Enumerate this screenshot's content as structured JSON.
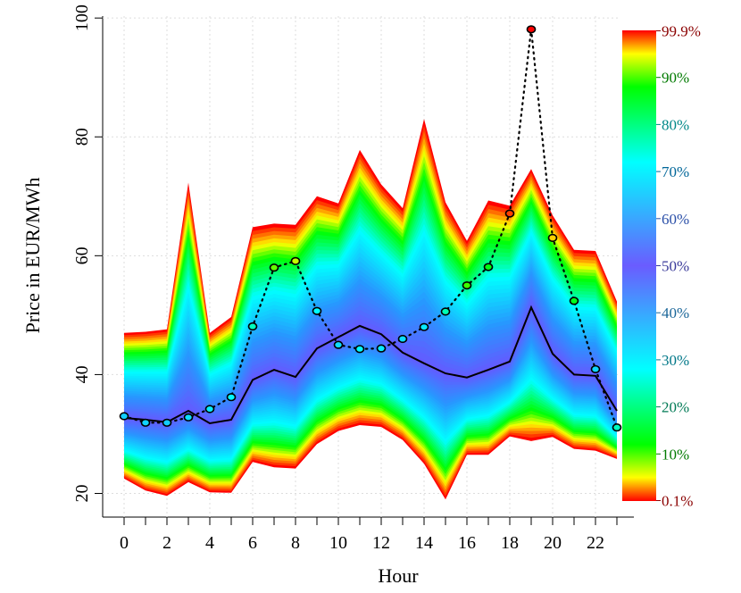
{
  "chart_data": {
    "type": "area",
    "xlabel": "Hour",
    "ylabel": "Price in EUR/MWh",
    "xlim": [
      -0.5,
      24
    ],
    "ylim": [
      18,
      100
    ],
    "x_ticks": [
      0,
      2,
      4,
      6,
      8,
      10,
      12,
      14,
      16,
      18,
      20,
      22
    ],
    "y_ticks": [
      20,
      40,
      60,
      80,
      100
    ],
    "grid": true,
    "hours": [
      0,
      1,
      2,
      3,
      4,
      5,
      6,
      7,
      8,
      9,
      10,
      11,
      12,
      13,
      14,
      15,
      16,
      17,
      18,
      19,
      20,
      21,
      22,
      23
    ],
    "quantile_band": {
      "upper_99_9": [
        47.0,
        47.2,
        47.6,
        72.3,
        47.0,
        49.7,
        64.8,
        65.4,
        65.2,
        70.0,
        68.8,
        77.8,
        72.0,
        68.0,
        83.0,
        69.0,
        62.5,
        69.3,
        68.4,
        74.6,
        66.8,
        61.0,
        60.8,
        52.3
      ],
      "lower_0_1": [
        22.5,
        20.5,
        19.6,
        21.9,
        20.2,
        20.1,
        25.3,
        24.4,
        24.2,
        28.3,
        30.5,
        31.5,
        31.2,
        29.0,
        25.0,
        19.0,
        26.5,
        26.5,
        29.6,
        28.8,
        29.5,
        27.5,
        27.2,
        25.8
      ]
    },
    "series": [
      {
        "type": "line",
        "style": "solid",
        "color": "#000000",
        "values": [
          32.7,
          32.4,
          32.0,
          33.9,
          31.8,
          32.4,
          39.1,
          40.8,
          39.6,
          44.4,
          46.3,
          48.2,
          46.8,
          43.7,
          41.9,
          40.2,
          39.5,
          40.8,
          42.2,
          51.3,
          43.5,
          40.0,
          39.8,
          33.9
        ]
      },
      {
        "type": "line",
        "style": "dotted",
        "color": "#000000",
        "points": true,
        "values": [
          33.0,
          31.9,
          31.9,
          32.8,
          34.2,
          36.2,
          48.1,
          58.0,
          59.1,
          50.7,
          45.0,
          44.3,
          44.4,
          46.0,
          48.0,
          50.6,
          55.0,
          58.1,
          67.1,
          98.1,
          63.0,
          52.4,
          40.9,
          31.1
        ]
      }
    ],
    "legend": {
      "position": "right",
      "labels": [
        "99.9%",
        "90%",
        "80%",
        "70%",
        "60%",
        "50%",
        "40%",
        "30%",
        "20%",
        "10%",
        "0.1%"
      ],
      "label_levels": [
        99.9,
        90,
        80,
        70,
        60,
        50,
        40,
        30,
        20,
        10,
        0.1
      ],
      "colors": {
        "99.9%": "#8b0000",
        "90%": "#007a00",
        "80%": "#008888",
        "70%": "#006699",
        "60%": "#2a4fa8",
        "50%": "#3a3a9a",
        "40%": "#1a6699",
        "30%": "#007788",
        "20%": "#007a55",
        "10%": "#007a00",
        "0.1%": "#8b0000"
      }
    }
  }
}
